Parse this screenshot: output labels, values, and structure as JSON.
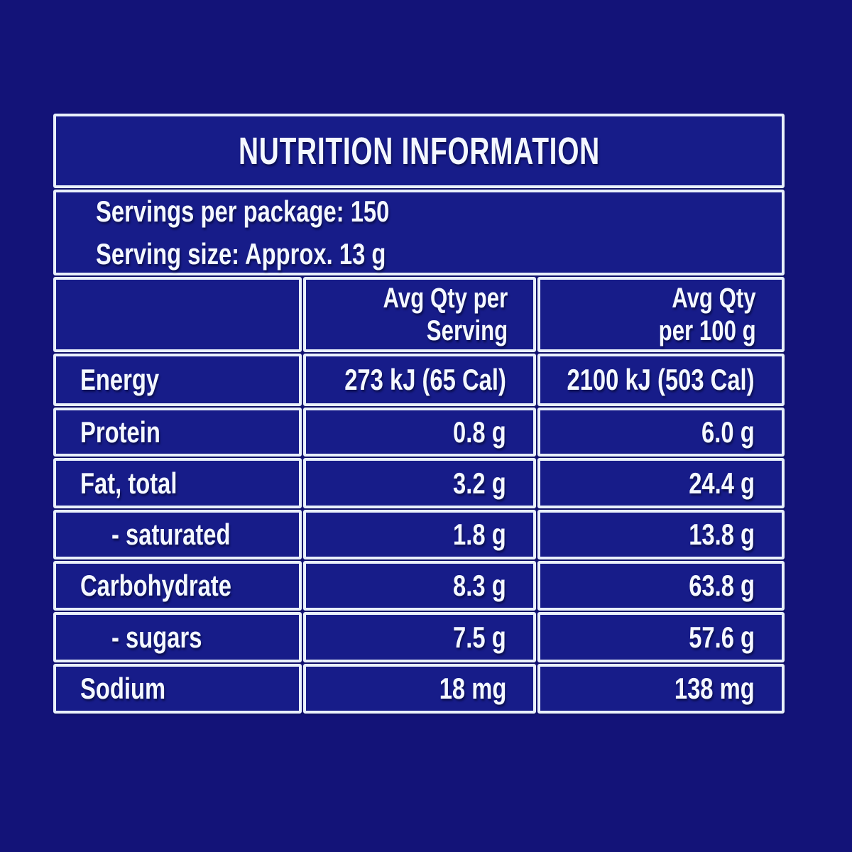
{
  "theme": {
    "page-bg": "#131378",
    "cell-bg": "#171c89",
    "line": "#e9f0fb",
    "text": "#f4f8ff"
  },
  "label": {
    "title": "NUTRITION INFORMATION",
    "servings_per_package": "Servings per package: 150",
    "serving_size": "Serving size: Approx. 13 g",
    "col_header_serving": "Avg Qty per\nServing",
    "col_header_100g": "Avg Qty\nper 100 g",
    "rows": [
      {
        "label": "Energy",
        "per_serving": "273 kJ (65 Cal)",
        "per_100g": "2100 kJ (503 Cal)"
      },
      {
        "label": "Protein",
        "per_serving": "0.8 g",
        "per_100g": "6.0 g"
      },
      {
        "label": "Fat, total",
        "per_serving": "3.2 g",
        "per_100g": "24.4 g"
      },
      {
        "label": "- saturated",
        "per_serving": "1.8 g",
        "per_100g": "13.8 g"
      },
      {
        "label": "Carbohydrate",
        "per_serving": "8.3 g",
        "per_100g": "63.8 g"
      },
      {
        "label": "- sugars",
        "per_serving": "7.5 g",
        "per_100g": "57.6 g"
      },
      {
        "label": "Sodium",
        "per_serving": "18 mg",
        "per_100g": "138 mg"
      }
    ]
  }
}
